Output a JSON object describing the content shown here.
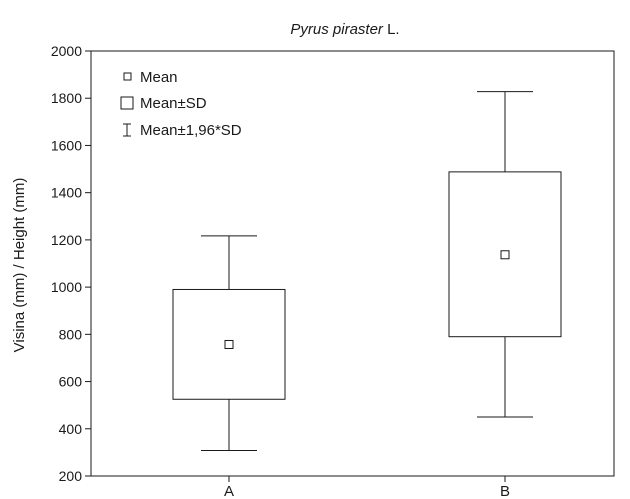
{
  "chart_data": {
    "type": "box",
    "title_species": "Pyrus piraster",
    "title_author": " L.",
    "ylabel": "Visina (mm) / Height (mm)",
    "xlabel": "",
    "ylim": [
      200,
      2000
    ],
    "yticks": [
      200,
      400,
      600,
      800,
      1000,
      1200,
      1400,
      1600,
      1800,
      2000
    ],
    "grid": false,
    "legend_position": "top-left",
    "legend": [
      "Mean",
      "Mean±SD",
      "Mean±1,96*SD"
    ],
    "categories": [
      "A",
      "B"
    ],
    "series": [
      {
        "category": "A",
        "mean": 757,
        "sd_low": 525,
        "sd_high": 990,
        "ci_low": 308,
        "ci_high": 1217
      },
      {
        "category": "B",
        "mean": 1137,
        "sd_low": 790,
        "sd_high": 1488,
        "ci_low": 450,
        "ci_high": 1828
      }
    ]
  }
}
